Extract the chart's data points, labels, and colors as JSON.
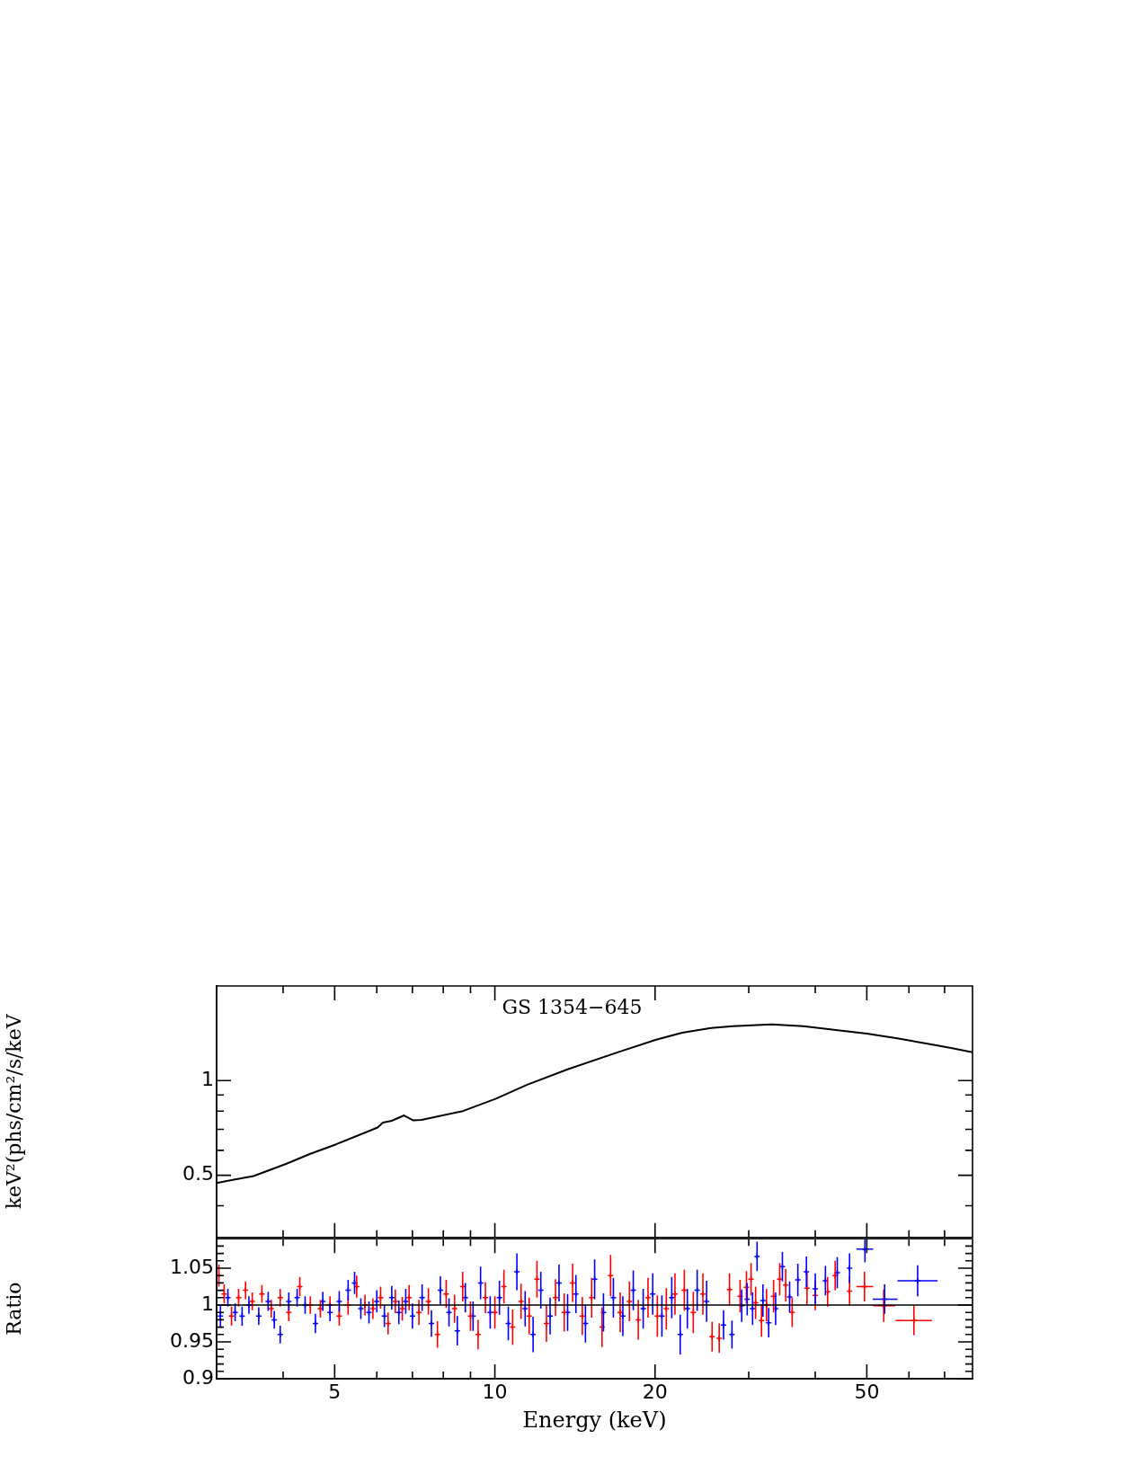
{
  "chart_data": [
    {
      "type": "line",
      "title": "GS 1354−645",
      "ylabel": "keV²(phs/cm²/s/keV",
      "log": "xy",
      "grid": false,
      "legend": false,
      "tick_labels": "y",
      "marker": "none",
      "xlim": [
        3,
        79
      ],
      "ylim": [
        0.317,
        2
      ],
      "xticks": [
        {
          "value": 3,
          "label": null
        },
        {
          "value": 4,
          "label": null
        },
        5,
        {
          "value": 6,
          "label": null
        },
        {
          "value": 7,
          "label": null
        },
        {
          "value": 8,
          "label": null
        },
        {
          "value": 9,
          "label": null
        },
        10,
        20,
        {
          "value": 30,
          "label": null
        },
        {
          "value": 40,
          "label": null
        },
        50,
        {
          "value": 60,
          "label": null
        },
        {
          "value": 70,
          "label": null
        }
      ],
      "yticks": [
        {
          "value": 0.4,
          "label": null
        },
        0.5,
        {
          "value": 0.6,
          "label": null
        },
        {
          "value": 0.7,
          "label": null
        },
        {
          "value": 0.8,
          "label": null
        },
        {
          "value": 0.9,
          "label": null
        },
        1
      ],
      "series": [
        {
          "color": "#000000",
          "x": [
            3.0,
            3.25,
            3.52,
            4.06,
            4.5,
            5.03,
            6.02,
            6.16,
            6.4,
            6.75,
            7.03,
            7.28,
            8.71,
            10.05,
            11.5,
            13.7,
            17,
            20.1,
            22.5,
            25.5,
            28,
            33.1,
            38,
            45.2,
            50,
            57.4,
            65,
            72,
            79
          ],
          "values": [
            0.472,
            0.485,
            0.497,
            0.544,
            0.585,
            0.627,
            0.709,
            0.735,
            0.745,
            0.775,
            0.747,
            0.75,
            0.8,
            0.876,
            0.97,
            1.086,
            1.23,
            1.35,
            1.42,
            1.47,
            1.49,
            1.51,
            1.49,
            1.44,
            1.41,
            1.36,
            1.31,
            1.27,
            1.23
          ]
        }
      ]
    },
    {
      "type": "scatter",
      "xlabel": "Energy (keV)",
      "ylabel": "Ratio",
      "log": "x",
      "grid": false,
      "legend": false,
      "marker": "cross",
      "xlim": [
        3,
        79
      ],
      "ylim": [
        0.9,
        1.09
      ],
      "xticks": [
        {
          "value": 3,
          "label": null
        },
        {
          "value": 4,
          "label": null
        },
        5,
        {
          "value": 6,
          "label": null
        },
        {
          "value": 7,
          "label": null
        },
        {
          "value": 8,
          "label": null
        },
        {
          "value": 9,
          "label": null
        },
        10,
        20,
        {
          "value": 30,
          "label": null
        },
        {
          "value": 40,
          "label": null
        },
        50,
        {
          "value": 60,
          "label": null
        },
        {
          "value": 70,
          "label": null
        }
      ],
      "yticks": [
        0.9,
        {
          "value": 0.91,
          "label": null
        },
        {
          "value": 0.92,
          "label": null
        },
        {
          "value": 0.93,
          "label": null
        },
        {
          "value": 0.94,
          "label": null
        },
        0.95,
        {
          "value": 0.96,
          "label": null
        },
        {
          "value": 0.97,
          "label": null
        },
        {
          "value": 0.98,
          "label": null
        },
        {
          "value": 0.99,
          "label": null
        },
        1,
        {
          "value": 1.01,
          "label": null
        },
        {
          "value": 1.02,
          "label": null
        },
        {
          "value": 1.03,
          "label": null
        },
        {
          "value": 1.04,
          "label": null
        },
        1.05,
        {
          "value": 1.06,
          "label": null
        },
        {
          "value": 1.07,
          "label": null
        },
        {
          "value": 1.08,
          "label": null
        }
      ],
      "ref_lines": [
        {
          "axis": "y",
          "value": 1,
          "color": "#000000"
        }
      ],
      "series": [
        {
          "color": "#ff0000",
          "x": [
            3.03,
            3.1,
            3.2,
            3.3,
            3.4,
            3.5,
            3.65,
            3.8,
            3.95,
            4.1,
            4.3,
            4.5,
            4.7,
            4.9,
            5.1,
            5.3,
            5.5,
            5.7,
            5.9,
            6.1,
            6.3,
            6.5,
            6.7,
            6.9,
            7.2,
            7.5,
            7.8,
            8.1,
            8.4,
            8.7,
            9.0,
            9.3,
            9.6,
            10.0,
            10.4,
            10.8,
            11.2,
            11.6,
            12.0,
            12.5,
            13.0,
            13.5,
            14.0,
            14.6,
            15.2,
            15.9,
            16.5,
            17.2,
            17.9,
            18.6,
            19.4,
            20.2,
            21.0,
            21.8,
            22.7,
            23.6,
            24.6,
            25.6,
            26.4,
            27.6,
            28.9,
            29.7,
            30.3,
            30.9,
            31.7,
            32.4,
            33.4,
            34.3,
            35.2,
            36.2,
            38.6,
            40.0,
            42.2,
            43.6,
            46.4,
            49.5,
            53.8,
            61.3
          ],
          "values": [
            1.04,
            1.015,
            0.985,
            1.01,
            1.02,
            1.005,
            1.015,
            0.995,
            1.01,
            0.99,
            1.025,
            1.0,
            0.995,
            1.0,
            0.985,
            1.0,
            1.025,
            1.0,
            0.995,
            1.01,
            0.975,
            1.005,
            0.995,
            1.01,
            0.99,
            1.005,
            0.96,
            1.015,
            0.995,
            1.025,
            0.985,
            0.96,
            1.01,
            0.99,
            1.025,
            0.97,
            1.005,
            0.985,
            1.035,
            0.975,
            1.01,
            0.99,
            1.03,
            0.985,
            1.01,
            0.97,
            1.04,
            0.99,
            1.005,
            0.98,
            1.01,
            0.985,
            0.995,
            1.015,
            1.02,
            0.99,
            1.015,
            0.957,
            0.955,
            1.021,
            1.012,
            1.024,
            1.035,
            1.003,
            0.979,
            1.0,
            1.012,
            1.035,
            1.027,
            0.99,
            1.023,
            1.013,
            1.018,
            1.04,
            1.019,
            1.025,
            0.999,
            0.979
          ],
          "errors": [
            0.015,
            0.013,
            0.013,
            0.012,
            0.012,
            0.012,
            0.012,
            0.012,
            0.012,
            0.012,
            0.013,
            0.012,
            0.012,
            0.012,
            0.013,
            0.013,
            0.015,
            0.014,
            0.014,
            0.015,
            0.015,
            0.016,
            0.016,
            0.017,
            0.017,
            0.018,
            0.018,
            0.019,
            0.019,
            0.02,
            0.02,
            0.02,
            0.021,
            0.022,
            0.023,
            0.024,
            0.024,
            0.025,
            0.025,
            0.025,
            0.025,
            0.026,
            0.026,
            0.026,
            0.027,
            0.027,
            0.028,
            0.027,
            0.027,
            0.027,
            0.027,
            0.028,
            0.028,
            0.028,
            0.028,
            0.028,
            0.028,
            0.02,
            0.02,
            0.022,
            0.022,
            0.022,
            0.022,
            0.022,
            0.022,
            0.022,
            0.022,
            0.022,
            0.022,
            0.02,
            0.022,
            0.02,
            0.02,
            0.02,
            0.02,
            0.02,
            0.022,
            0.02
          ],
          "xerrors": [
            null,
            null,
            null,
            null,
            null,
            null,
            null,
            null,
            null,
            null,
            null,
            null,
            null,
            null,
            null,
            null,
            null,
            null,
            null,
            null,
            null,
            null,
            null,
            null,
            null,
            null,
            null,
            null,
            null,
            null,
            null,
            null,
            null,
            null,
            null,
            null,
            null,
            null,
            null,
            null,
            null,
            null,
            null,
            null,
            null,
            null,
            null,
            null,
            null,
            null,
            null,
            null,
            null,
            null,
            null,
            null,
            null,
            null,
            null,
            null,
            null,
            null,
            null,
            null,
            null,
            null,
            null,
            null,
            null,
            null,
            null,
            null,
            null,
            null,
            null,
            [
              47.8,
              51.4
            ],
            [
              51.4,
              56.5
            ],
            [
              56.6,
              66.3
            ]
          ]
        },
        {
          "color": "#0000ff",
          "x": [
            3.05,
            3.15,
            3.25,
            3.35,
            3.45,
            3.6,
            3.75,
            3.85,
            3.95,
            4.1,
            4.25,
            4.4,
            4.6,
            4.75,
            4.9,
            5.1,
            5.3,
            5.45,
            5.6,
            5.8,
            6.0,
            6.2,
            6.4,
            6.6,
            6.8,
            7.0,
            7.3,
            7.6,
            7.9,
            8.2,
            8.5,
            8.8,
            9.1,
            9.4,
            9.8,
            10.2,
            10.6,
            11.0,
            11.4,
            11.8,
            12.2,
            12.7,
            13.2,
            13.7,
            14.2,
            14.8,
            15.4,
            16.0,
            16.7,
            17.4,
            18.2,
            19.0,
            19.8,
            20.6,
            21.5,
            22.3,
            23.0,
            24.0,
            25.0,
            26.9,
            27.9,
            29.1,
            29.8,
            30.5,
            31.1,
            31.9,
            32.7,
            33.7,
            34.7,
            35.8,
            37.1,
            38.5,
            40.0,
            41.8,
            44.0,
            46.4,
            49.6,
            54.0,
            62.3
          ],
          "values": [
            0.985,
            1.01,
            0.99,
            0.985,
            1.0,
            0.985,
            1.005,
            0.98,
            0.96,
            1.005,
            1.01,
            1.0,
            0.975,
            1.005,
            0.99,
            1.005,
            1.02,
            1.03,
            0.995,
            0.99,
            1.005,
            0.985,
            1.01,
            0.99,
            1.005,
            0.985,
            1.01,
            0.975,
            1.02,
            0.99,
            0.965,
            1.01,
            0.985,
            1.03,
            0.99,
            1.01,
            0.975,
            1.045,
            0.995,
            0.96,
            1.02,
            0.985,
            1.03,
            0.99,
            1.015,
            0.975,
            1.035,
            0.99,
            1.01,
            0.985,
            1.02,
            0.995,
            1.015,
            0.985,
            1.01,
            0.96,
            0.995,
            1.02,
            1.005,
            0.973,
            0.96,
            0.999,
            1.008,
            0.995,
            1.066,
            1.006,
            0.976,
            0.995,
            1.052,
            1.011,
            1.034,
            1.045,
            1.022,
            1.033,
            1.044,
            1.05,
            1.076,
            1.008,
            1.033
          ],
          "errors": [
            0.015,
            0.012,
            0.012,
            0.013,
            0.012,
            0.012,
            0.013,
            0.012,
            0.012,
            0.012,
            0.012,
            0.012,
            0.013,
            0.013,
            0.012,
            0.014,
            0.014,
            0.015,
            0.014,
            0.015,
            0.015,
            0.015,
            0.016,
            0.016,
            0.017,
            0.017,
            0.018,
            0.018,
            0.019,
            0.019,
            0.02,
            0.02,
            0.02,
            0.022,
            0.022,
            0.023,
            0.023,
            0.025,
            0.024,
            0.024,
            0.025,
            0.025,
            0.025,
            0.025,
            0.026,
            0.026,
            0.027,
            0.026,
            0.027,
            0.027,
            0.027,
            0.027,
            0.028,
            0.028,
            0.028,
            0.027,
            0.027,
            0.028,
            0.028,
            0.02,
            0.019,
            0.022,
            0.022,
            0.022,
            0.02,
            0.022,
            0.02,
            0.022,
            0.02,
            0.021,
            0.022,
            0.021,
            0.021,
            0.02,
            0.021,
            0.02,
            [
              1.058,
              1.089
            ],
            0.02,
            0.021
          ],
          "xerrors": [
            null,
            null,
            null,
            null,
            null,
            null,
            null,
            null,
            null,
            null,
            null,
            null,
            null,
            null,
            null,
            null,
            null,
            null,
            null,
            null,
            null,
            null,
            null,
            null,
            null,
            null,
            null,
            null,
            null,
            null,
            null,
            null,
            null,
            null,
            null,
            null,
            null,
            null,
            null,
            null,
            null,
            null,
            null,
            null,
            null,
            null,
            null,
            null,
            null,
            null,
            null,
            null,
            null,
            null,
            null,
            null,
            null,
            null,
            null,
            null,
            null,
            null,
            null,
            null,
            null,
            null,
            null,
            null,
            null,
            null,
            null,
            null,
            null,
            null,
            null,
            null,
            [
              47.8,
              51.4
            ],
            [
              51.3,
              57.1
            ],
            [
              57.1,
              67.9
            ]
          ]
        }
      ]
    }
  ]
}
